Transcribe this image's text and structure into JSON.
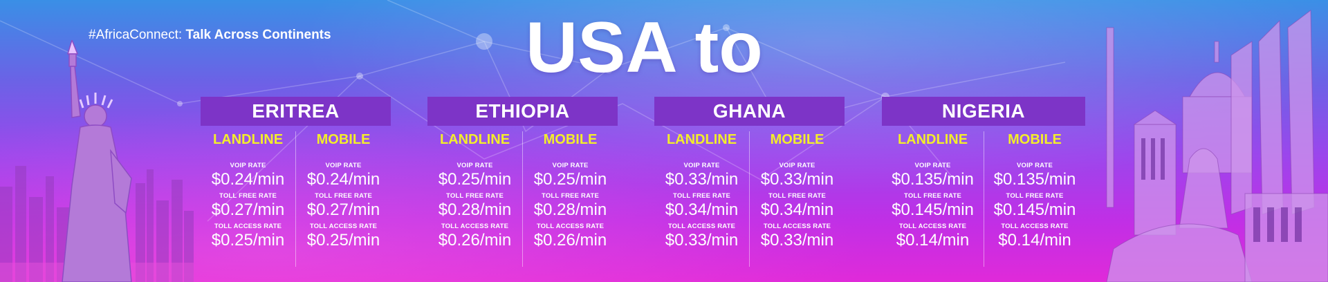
{
  "header": {
    "hashtag_prefix": "#AfricaConnect:",
    "hashtag_text": "Talk Across Continents",
    "headline": "USA to"
  },
  "colors": {
    "accent_yellow": "#f3ee2a",
    "country_bar": "#7d34c7",
    "gradient_top": "#3a8fe6",
    "gradient_bottom": "#e02ad9"
  },
  "countries": [
    {
      "name": "ERITREA",
      "landline": {
        "label": "LANDLINE",
        "voip_label": "VOIP RATE",
        "voip": "$0.24/min",
        "tollfree_label": "TOLL FREE RATE",
        "tollfree": "$0.27/min",
        "access_label": "TOLL ACCESS RATE",
        "access": "$0.25/min"
      },
      "mobile": {
        "label": "MOBILE",
        "voip_label": "VOIP RATE",
        "voip": "$0.24/min",
        "tollfree_label": "TOLL FREE RATE",
        "tollfree": "$0.27/min",
        "access_label": "TOLL ACCESS RATE",
        "access": "$0.25/min"
      }
    },
    {
      "name": "ETHIOPIA",
      "landline": {
        "label": "LANDLINE",
        "voip_label": "VOIP RATE",
        "voip": "$0.25/min",
        "tollfree_label": "TOLL FREE RATE",
        "tollfree": "$0.28/min",
        "access_label": "TOLL ACCESS RATE",
        "access": "$0.26/min"
      },
      "mobile": {
        "label": "MOBILE",
        "voip_label": "VOIP RATE",
        "voip": "$0.25/min",
        "tollfree_label": "TOLL FREE RATE",
        "tollfree": "$0.28/min",
        "access_label": "TOLL ACCESS RATE",
        "access": "$0.26/min"
      }
    },
    {
      "name": "GHANA",
      "landline": {
        "label": "LANDLINE",
        "voip_label": "VOIP RATE",
        "voip": "$0.33/min",
        "tollfree_label": "TOLL FREE RATE",
        "tollfree": "$0.34/min",
        "access_label": "TOLL ACCESS RATE",
        "access": "$0.33/min"
      },
      "mobile": {
        "label": "MOBILE",
        "voip_label": "VOIP RATE",
        "voip": "$0.33/min",
        "tollfree_label": "TOLL FREE RATE",
        "tollfree": "$0.34/min",
        "access_label": "TOLL ACCESS RATE",
        "access": "$0.33/min"
      }
    },
    {
      "name": "NIGERIA",
      "landline": {
        "label": "LANDLINE",
        "voip_label": "VOIP RATE",
        "voip": "$0.135/min",
        "tollfree_label": "TOLL FREE RATE",
        "tollfree": "$0.145/min",
        "access_label": "TOLL ACCESS RATE",
        "access": "$0.14/min"
      },
      "mobile": {
        "label": "MOBILE",
        "voip_label": "VOIP RATE",
        "voip": "$0.135/min",
        "tollfree_label": "TOLL FREE RATE",
        "tollfree": "$0.145/min",
        "access_label": "TOLL ACCESS RATE",
        "access": "$0.14/min"
      }
    }
  ]
}
